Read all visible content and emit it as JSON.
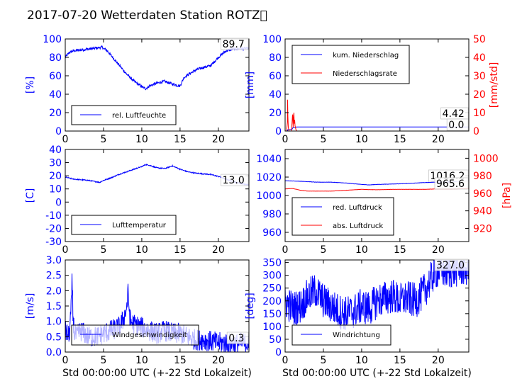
{
  "title": "2017-07-20 Wetterdaten Station ROTZ\u0000",
  "colors": {
    "primary": "#0000ff",
    "secondary": "#ff0000",
    "axis": "#000000"
  },
  "chart_data": [
    {
      "id": "humidity",
      "type": "line",
      "ylabel": "[%]",
      "xlim": [
        0,
        24
      ],
      "ylim": [
        0,
        100
      ],
      "xticks": [
        0,
        5,
        10,
        15,
        20
      ],
      "yticks": [
        0,
        20,
        40,
        60,
        80,
        100
      ],
      "last_value_label": "89.7",
      "legend_position": "lower-left",
      "series": [
        {
          "name": "rel. Luftfeuchte",
          "color": "#0000ff",
          "noise": 1.5,
          "x": [
            0,
            0.5,
            1,
            2,
            3,
            4,
            4.8,
            5.5,
            6,
            7,
            8,
            9,
            10,
            10.5,
            11,
            12,
            13,
            14,
            15,
            15.5,
            16,
            17,
            18,
            19,
            20,
            21,
            22,
            23,
            24
          ],
          "y": [
            80,
            85,
            87,
            88,
            89,
            90,
            91,
            87,
            82,
            72,
            62,
            54,
            48,
            46,
            49,
            52,
            54,
            51,
            49,
            58,
            61,
            66,
            69,
            71,
            80,
            87,
            89,
            89.5,
            89.7
          ]
        }
      ]
    },
    {
      "id": "precipitation",
      "type": "line",
      "ylabel": "[mm]",
      "ylabel_right": "[mm/std]",
      "xlim": [
        0,
        24
      ],
      "ylim": [
        0,
        100
      ],
      "ylim_right": [
        0,
        50
      ],
      "xticks": [
        0,
        5,
        10,
        15,
        20
      ],
      "yticks": [
        0,
        20,
        40,
        60,
        80,
        100
      ],
      "yticks_right": [
        0,
        10,
        20,
        30,
        40,
        50
      ],
      "last_value_labels": [
        "4.42",
        "0.0"
      ],
      "legend_position": "upper-left",
      "series": [
        {
          "name": "kum. Niederschlag",
          "color": "#0000ff",
          "axis": "left",
          "noise": 0,
          "x": [
            0,
            0.3,
            0.35,
            0.9,
            1.0,
            1.4,
            1.5,
            24
          ],
          "y": [
            0,
            0,
            1.5,
            1.8,
            3.5,
            4.2,
            4.42,
            4.42
          ]
        },
        {
          "name": "Niederschlagsrate",
          "color": "#ff0000",
          "axis": "right",
          "noise": 0,
          "x": [
            0,
            0.2,
            0.3,
            0.32,
            0.36,
            0.42,
            0.5,
            0.6,
            0.8,
            0.9,
            0.95,
            1.0,
            1.05,
            1.1,
            1.15,
            1.2,
            1.25,
            1.3,
            1.4,
            1.5,
            1.6,
            24
          ],
          "y": [
            0,
            0,
            5,
            17,
            8,
            2,
            0,
            0,
            0,
            4,
            8,
            9,
            2,
            7,
            10,
            4,
            6,
            3,
            1,
            0,
            0,
            0
          ]
        }
      ]
    },
    {
      "id": "temperature",
      "type": "line",
      "ylabel": "[C]",
      "xlim": [
        0,
        24
      ],
      "ylim": [
        -30,
        40
      ],
      "xticks": [
        0,
        5,
        10,
        15,
        20
      ],
      "yticks": [
        -30,
        -20,
        -10,
        0,
        10,
        20,
        30,
        40
      ],
      "last_value_label": "13.0",
      "legend_position": "lower-left",
      "series": [
        {
          "name": "Lufttemperatur",
          "color": "#0000ff",
          "noise": 0.4,
          "x": [
            0,
            1,
            2,
            3,
            4,
            4.5,
            5,
            6,
            7,
            8,
            9,
            10,
            10.5,
            11,
            12,
            13,
            14,
            15,
            16,
            17,
            18,
            19,
            20,
            21,
            22,
            23,
            24
          ],
          "y": [
            19,
            17.5,
            17,
            16.5,
            15.5,
            15,
            16.5,
            18.5,
            21,
            23,
            25,
            27,
            28.5,
            28,
            26,
            25.5,
            27.5,
            25,
            23,
            22,
            21.5,
            21,
            19.5,
            17.5,
            15.5,
            14,
            13
          ]
        }
      ]
    },
    {
      "id": "pressure",
      "type": "line",
      "ylabel_right": "[hPa]",
      "xlim": [
        0,
        24
      ],
      "ylim": [
        950,
        1050
      ],
      "ylim_right": [
        905,
        1010
      ],
      "xticks": [
        0,
        5,
        10,
        15,
        20
      ],
      "yticks": [
        960,
        980,
        1000,
        1020,
        1040
      ],
      "yticks_right": [
        920,
        940,
        960,
        980,
        1000
      ],
      "last_value_labels": [
        "1016.2",
        "965.6"
      ],
      "legend_position": "lower-left",
      "series": [
        {
          "name": "red. Luftdruck",
          "color": "#0000ff",
          "axis": "left",
          "noise": 0.15,
          "x": [
            0,
            2,
            4,
            6,
            8,
            10,
            11,
            12,
            14,
            16,
            18,
            20,
            22,
            24
          ],
          "y": [
            1016,
            1015.5,
            1014.5,
            1014.5,
            1013.5,
            1012,
            1011.5,
            1012,
            1012.5,
            1013,
            1014,
            1014.5,
            1015,
            1016.2
          ]
        },
        {
          "name": "abs. Luftdruck",
          "color": "#ff0000",
          "axis": "right",
          "noise": 0.1,
          "x": [
            0,
            1,
            2,
            3,
            4,
            6,
            8,
            10,
            12,
            14,
            16,
            18,
            20,
            22,
            24
          ],
          "y": [
            965,
            965.5,
            963.5,
            962.5,
            962.5,
            962.5,
            963.5,
            964.5,
            964,
            964.5,
            964.5,
            964.5,
            965,
            965,
            965.6
          ]
        }
      ]
    },
    {
      "id": "wind_speed",
      "type": "line",
      "ylabel": "[m/s]",
      "xlabel": "Std 00:00:00 UTC (+-22 Std Lokalzeit)",
      "xlim": [
        0,
        24
      ],
      "ylim": [
        0,
        3
      ],
      "xticks": [
        0,
        5,
        10,
        15,
        20
      ],
      "yticks": [
        0.0,
        0.5,
        1.0,
        1.5,
        2.0,
        2.5,
        3.0
      ],
      "ytick_labels": [
        "0.0",
        "0.5",
        "1.0",
        "1.5",
        "2.0",
        "2.5",
        "3.0"
      ],
      "last_value_label": "0.3",
      "legend_position": "lower-left",
      "series": [
        {
          "name": "Windgeschwindigkeit",
          "color": "#0000ff",
          "noise": 0.35,
          "x": [
            0,
            0.5,
            0.8,
            0.9,
            1.0,
            1.2,
            1.5,
            2.0,
            2.5,
            3,
            4,
            5,
            6,
            7,
            7.5,
            8,
            8.2,
            8.5,
            9,
            10,
            11,
            12,
            13,
            14,
            15,
            16,
            17,
            18,
            19,
            20,
            21,
            22,
            23,
            24
          ],
          "y": [
            0.7,
            0.5,
            1.5,
            2.4,
            1.2,
            0.6,
            0.5,
            0.7,
            0.6,
            0.5,
            0.5,
            0.6,
            0.7,
            0.8,
            1.0,
            1.4,
            1.9,
            1.0,
            0.9,
            0.8,
            0.7,
            0.6,
            0.7,
            0.6,
            0.6,
            0.5,
            0.4,
            0.4,
            0.35,
            0.3,
            0.3,
            0.25,
            0.3,
            0.3
          ]
        }
      ]
    },
    {
      "id": "wind_direction",
      "type": "line",
      "ylabel": "[deg]",
      "xlabel": "Std 00:00:00 UTC (+-22 Std Lokalzeit)",
      "xlim": [
        0,
        24
      ],
      "ylim": [
        0,
        360
      ],
      "xticks": [
        0,
        5,
        10,
        15,
        20
      ],
      "yticks": [
        0,
        50,
        100,
        150,
        200,
        250,
        300,
        350
      ],
      "last_value_label": "327.0",
      "legend_position": "lower-left",
      "series": [
        {
          "name": "Windrichtung",
          "color": "#0000ff",
          "noise": 70,
          "x": [
            0,
            1,
            2,
            3,
            4,
            5,
            6,
            7,
            8,
            9,
            10,
            11,
            12,
            13,
            14,
            15,
            16,
            17,
            18,
            19,
            19.5,
            20,
            21,
            22,
            23,
            24
          ],
          "y": [
            200,
            170,
            180,
            220,
            240,
            200,
            180,
            160,
            150,
            160,
            180,
            170,
            200,
            210,
            220,
            200,
            210,
            200,
            230,
            280,
            310,
            320,
            315,
            320,
            325,
            327
          ]
        }
      ]
    }
  ]
}
